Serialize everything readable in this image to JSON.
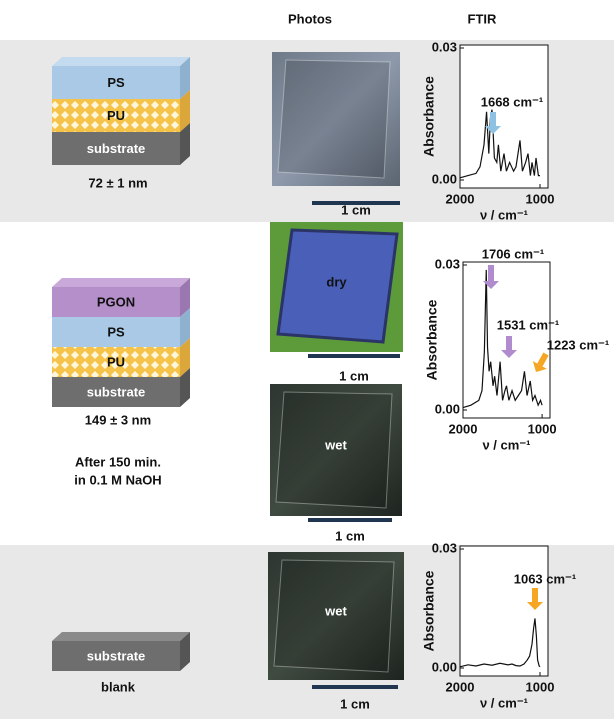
{
  "headers": {
    "photos": "Photos",
    "ftir": "FTIR"
  },
  "rows": [
    {
      "layers": [
        "PS",
        "PU",
        "substrate"
      ],
      "thickness": "72 ± 1 nm",
      "photos": [
        {
          "scale": "1 cm"
        }
      ],
      "ftir": {
        "ylabel": "Absorbance",
        "xlabel": "ν / cm⁻¹",
        "xlim": [
          2000,
          900
        ],
        "ylim": [
          0,
          0.03
        ],
        "xticks": [
          2000,
          1000
        ],
        "yticks": [
          {
            "value": 0,
            "label": "0.00"
          },
          0.03
        ],
        "peaks": [
          "1668 cm⁻¹"
        ],
        "x": [
          2000,
          1900,
          1800,
          1750,
          1700,
          1668,
          1640,
          1620,
          1600,
          1570,
          1540,
          1520,
          1490,
          1450,
          1420,
          1380,
          1330,
          1300,
          1250,
          1220,
          1180,
          1150,
          1120,
          1100,
          1070,
          1050,
          1020,
          1000
        ],
        "values": [
          0.0005,
          0.001,
          0.0015,
          0.003,
          0.008,
          0.0155,
          0.006,
          0.014,
          0.016,
          0.005,
          0.004,
          0.008,
          0.002,
          0.006,
          0.002,
          0.004,
          0.002,
          0.003,
          0.009,
          0.002,
          0.004,
          0.006,
          0.001,
          0.004,
          0.001,
          0.005,
          0.001,
          0.001
        ]
      }
    },
    {
      "layers": [
        "PGON",
        "PS",
        "PU",
        "substrate"
      ],
      "thickness": "149 ± 3 nm",
      "note": [
        "After 150 min.",
        "in 0.1 M NaOH"
      ],
      "photos": [
        {
          "label": "dry",
          "scale": "1 cm"
        },
        {
          "label": "wet",
          "scale": "1 cm"
        }
      ],
      "ftir": {
        "ylabel": "Absorbance",
        "xlabel": "ν / cm⁻¹",
        "xlim": [
          2000,
          900
        ],
        "ylim": [
          0,
          0.03
        ],
        "xticks": [
          2000,
          1000
        ],
        "yticks": [
          {
            "value": 0,
            "label": "0.00"
          },
          0.03
        ],
        "peaks": [
          "1706 cm⁻¹",
          "1531 cm⁻¹",
          "1223 cm⁻¹"
        ],
        "x": [
          2000,
          1900,
          1800,
          1760,
          1730,
          1706,
          1690,
          1670,
          1650,
          1620,
          1600,
          1570,
          1531,
          1500,
          1470,
          1450,
          1420,
          1380,
          1340,
          1300,
          1260,
          1223,
          1190,
          1150,
          1120,
          1090,
          1050,
          1020,
          1000
        ],
        "values": [
          0.0005,
          0.001,
          0.002,
          0.004,
          0.012,
          0.029,
          0.013,
          0.008,
          0.01,
          0.005,
          0.007,
          0.003,
          0.01,
          0.002,
          0.004,
          0.005,
          0.002,
          0.004,
          0.002,
          0.003,
          0.004,
          0.008,
          0.003,
          0.006,
          0.002,
          0.003,
          0.001,
          0.002,
          0.001
        ]
      }
    },
    {
      "layers": [
        "substrate"
      ],
      "caption": "blank",
      "photos": [
        {
          "label": "wet",
          "scale": "1 cm"
        }
      ],
      "ftir": {
        "ylabel": "Absorbance",
        "xlabel": "ν / cm⁻¹",
        "xlim": [
          2000,
          900
        ],
        "ylim": [
          0,
          0.03
        ],
        "xticks": [
          2000,
          1000
        ],
        "yticks": [
          {
            "value": 0,
            "label": "0.00"
          },
          0.03
        ],
        "peaks": [
          "1063 cm⁻¹"
        ],
        "x": [
          2000,
          1900,
          1800,
          1700,
          1600,
          1500,
          1400,
          1350,
          1300,
          1250,
          1200,
          1160,
          1130,
          1100,
          1080,
          1063,
          1045,
          1030,
          1010,
          1000
        ],
        "values": [
          0.0003,
          0.0008,
          0.0005,
          0.001,
          0.0007,
          0.0012,
          0.0008,
          0.001,
          0.0006,
          0.0005,
          0.001,
          0.002,
          0.003,
          0.006,
          0.01,
          0.0125,
          0.008,
          0.002,
          0.0005,
          0.0003
        ]
      }
    }
  ]
}
